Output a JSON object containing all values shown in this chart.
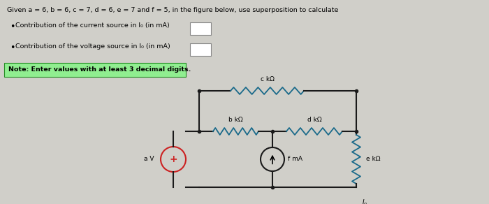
{
  "title_text": "Given a = 6, b = 6, c = 7, d = 6, e = 7 and f = 5, in the figure below, use superposition to calculate",
  "bullet1": "Contribution of the current source in I₀ (in mA)",
  "bullet2": "Contribution of the voltage source in I₀ (in mA)",
  "note": "Note: Enter values with at least 3 decimal digits.",
  "bg_color": "#d0cfc9",
  "note_bg": "#90ee90",
  "wire_color": "#1a1a1a",
  "resistor_color": "#1a6a8a",
  "vs_color": "#cc2222",
  "cs_color": "#1a1a1a",
  "a_val": "a",
  "b_val": "b",
  "c_val": "c",
  "d_val": "d",
  "e_val": "e",
  "f_val": "f"
}
